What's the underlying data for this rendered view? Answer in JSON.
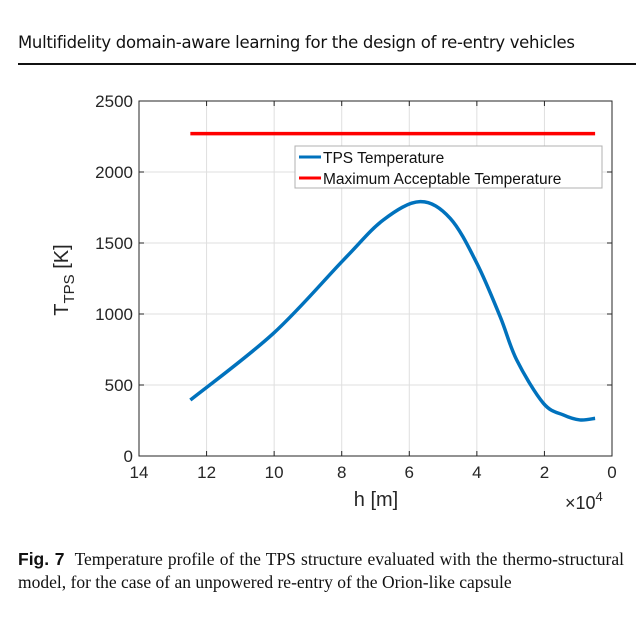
{
  "header": {
    "running_title": "Multifidelity domain-aware learning for the design of re-entry vehicles"
  },
  "caption": {
    "label": "Fig. 7",
    "text": "Temperature profile of the TPS structure evaluated with the thermo-structural model, for the case of an unpowered re-entry of the Orion-like capsule"
  },
  "chart_data": {
    "type": "line",
    "title": "",
    "xlabel": "h [m]",
    "ylabel_main": "T",
    "ylabel_sub": "TPS",
    "ylabel_unit": " [K]",
    "x_multiplier": "×10",
    "x_multiplier_exp": "4",
    "xlim": [
      14,
      0
    ],
    "ylim": [
      0,
      2500
    ],
    "x_reversed": true,
    "xticks": [
      14,
      12,
      10,
      8,
      6,
      4,
      2,
      0
    ],
    "yticks": [
      0,
      500,
      1000,
      1500,
      2000,
      2500
    ],
    "grid": true,
    "legend_position": "top-right",
    "series": [
      {
        "name": "TPS Temperature",
        "color": "#0072BD",
        "x": [
          12.48,
          10.02,
          7.95,
          6.77,
          5.68,
          4.79,
          4.0,
          3.31,
          2.82,
          2.03,
          1.44,
          0.95,
          0.5
        ],
        "y": [
          394,
          864,
          1380,
          1662,
          1791,
          1674,
          1357,
          981,
          676,
          371,
          289,
          254,
          265
        ]
      },
      {
        "name": "Maximum Acceptable Temperature",
        "color": "#FF0000",
        "x": [
          12.48,
          0.5
        ],
        "y": [
          2270,
          2270
        ]
      }
    ]
  }
}
